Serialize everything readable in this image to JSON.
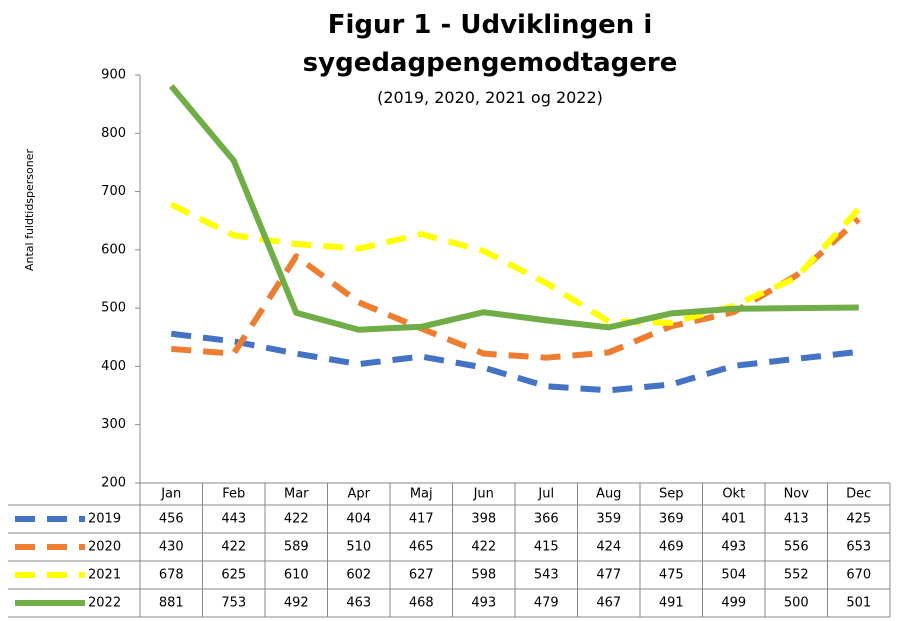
{
  "chart_data": {
    "type": "line",
    "title": "Figur 1 - Udviklingen i sygedagpengemodtagere",
    "subtitle": "(2019, 2020, 2021 og 2022)",
    "y_label": "Antal fuldtidspersoner",
    "categories": [
      "Jan",
      "Feb",
      "Mar",
      "Apr",
      "Maj",
      "Jun",
      "Jul",
      "Aug",
      "Sep",
      "Okt",
      "Nov",
      "Dec"
    ],
    "series": [
      {
        "name": "2019",
        "color": "#4472c4",
        "dashed": true,
        "values": [
          456,
          443,
          422,
          404,
          417,
          398,
          366,
          359,
          369,
          401,
          413,
          425
        ]
      },
      {
        "name": "2020",
        "color": "#ed7d31",
        "dashed": true,
        "values": [
          430,
          422,
          589,
          510,
          465,
          422,
          415,
          424,
          469,
          493,
          556,
          653
        ]
      },
      {
        "name": "2021",
        "color": "#ffff00",
        "dashed": true,
        "values": [
          678,
          625,
          610,
          602,
          627,
          598,
          543,
          477,
          475,
          504,
          552,
          670
        ]
      },
      {
        "name": "2022",
        "color": "#70ad47",
        "dashed": false,
        "values": [
          881,
          753,
          492,
          463,
          468,
          493,
          479,
          467,
          491,
          499,
          500,
          501
        ]
      }
    ],
    "ylim": [
      200,
      900
    ],
    "yticks": [
      200,
      300,
      400,
      500,
      600,
      700,
      800,
      900
    ],
    "grid": false
  }
}
